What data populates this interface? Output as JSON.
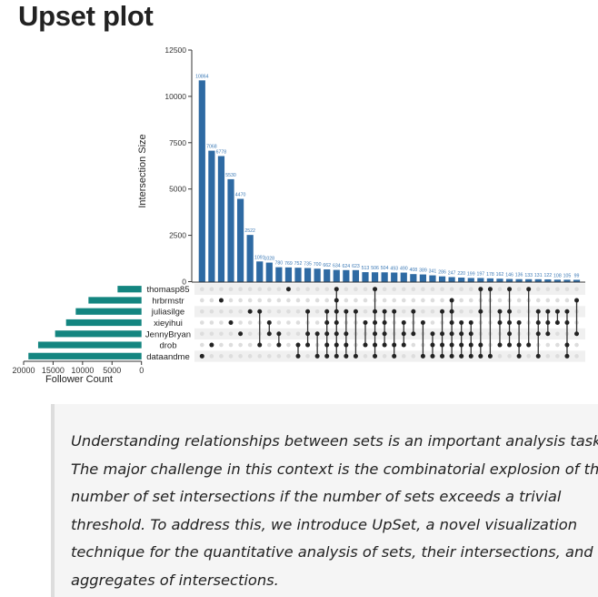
{
  "page": {
    "title": "Upset plot",
    "quote_lines": [
      "Understanding relationships between sets is an important analysis task.",
      "The major challenge in this context is the combinatorial explosion of the",
      "number of set intersections if the number of sets exceeds a trivial",
      "threshold. To address this, we introduce UpSet, a novel visualization",
      "technique for the quantitative analysis of sets, their intersections, and",
      "aggregates of intersections."
    ]
  },
  "chart_data": {
    "type": "upset",
    "ylabel": "Intersection Size",
    "yticks": [
      0,
      2500,
      5000,
      7500,
      10000,
      12500
    ],
    "ylim": [
      0,
      12500
    ],
    "set_xlabel": "Follower Count",
    "set_xticks": [
      20000,
      15000,
      10000,
      5000,
      0
    ],
    "set_xlim": [
      0,
      20000
    ],
    "sets": [
      "thomasp85",
      "hrbrmstr",
      "juliasilge",
      "xieyihui",
      "JennyBryan",
      "drob",
      "dataandme"
    ],
    "set_sizes": [
      4060,
      9000,
      11160,
      12800,
      14660,
      17540,
      19190
    ],
    "intersection_sizes": [
      10864,
      7068,
      6778,
      5530,
      4470,
      2522,
      1091,
      1028,
      780,
      769,
      752,
      735,
      700,
      662,
      634,
      624,
      623,
      513,
      506,
      504,
      493,
      490,
      408,
      389,
      341,
      286,
      247,
      220,
      199,
      197,
      178,
      162,
      146,
      136,
      133,
      131,
      122,
      108,
      105,
      99
    ],
    "intersection_members": [
      [
        6
      ],
      [
        5
      ],
      [
        1
      ],
      [
        3
      ],
      [
        4
      ],
      [
        2
      ],
      [
        2,
        5
      ],
      [
        3,
        4
      ],
      [
        4,
        5
      ],
      [
        0
      ],
      [
        5,
        6
      ],
      [
        2,
        4,
        5
      ],
      [
        4,
        6
      ],
      [
        2,
        3,
        4,
        5,
        6
      ],
      [
        0,
        1,
        2,
        3,
        4,
        5,
        6
      ],
      [
        2,
        4,
        5,
        6
      ],
      [
        2,
        6
      ],
      [
        3,
        5
      ],
      [
        0,
        2,
        3,
        4,
        5,
        6
      ],
      [
        2,
        3,
        4,
        5
      ],
      [
        2,
        5,
        6
      ],
      [
        3,
        4,
        5
      ],
      [
        2,
        4
      ],
      [
        3,
        6
      ],
      [
        4,
        5,
        6
      ],
      [
        2,
        4,
        5,
        6
      ],
      [
        1,
        2,
        3,
        4,
        5,
        6
      ],
      [
        3,
        4,
        5,
        6
      ],
      [
        3,
        4,
        5,
        6
      ],
      [
        0,
        2,
        5,
        6
      ],
      [
        0,
        6
      ],
      [
        2,
        3,
        5
      ],
      [
        0,
        2,
        3,
        4,
        5
      ],
      [
        3,
        5,
        6
      ],
      [
        0,
        5
      ],
      [
        2,
        3,
        4,
        6
      ],
      [
        2,
        3,
        4
      ],
      [
        2,
        3
      ],
      [
        2,
        3,
        5,
        6
      ],
      [
        1,
        4
      ]
    ],
    "grid": false,
    "colors": {
      "bars": "#2e6aa3",
      "bar_labels": "#3a78b5",
      "set_bars": "#138580",
      "dot_active": "#222222",
      "dot_inactive": "#dddddd",
      "row_stripe": "#f0f0f0"
    }
  }
}
